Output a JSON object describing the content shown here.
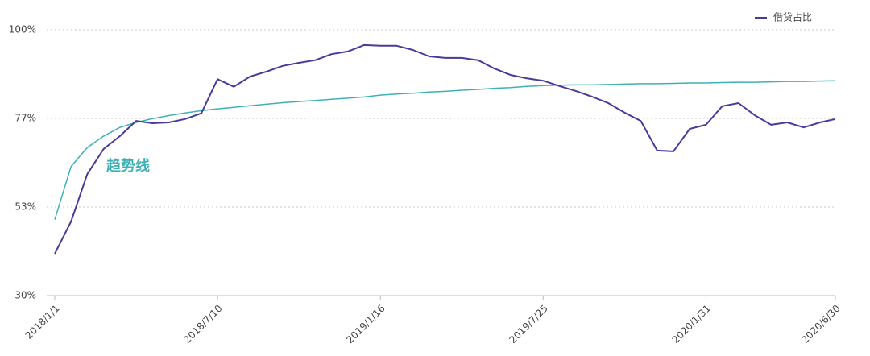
{
  "chart_data": {
    "type": "line",
    "x": [
      "2018/1/1",
      "2018/1/20",
      "2018/2/8",
      "2018/2/27",
      "2018/3/18",
      "2018/4/6",
      "2018/4/25",
      "2018/5/14",
      "2018/6/2",
      "2018/6/21",
      "2018/7/10",
      "2018/7/29",
      "2018/8/17",
      "2018/9/5",
      "2018/9/24",
      "2018/10/13",
      "2018/11/1",
      "2018/11/20",
      "2018/12/9",
      "2018/12/28",
      "2019/1/16",
      "2019/2/4",
      "2019/2/23",
      "2019/3/14",
      "2019/4/2",
      "2019/4/21",
      "2019/5/10",
      "2019/5/29",
      "2019/6/17",
      "2019/7/6",
      "2019/7/25",
      "2019/8/13",
      "2019/9/1",
      "2019/9/20",
      "2019/10/9",
      "2019/10/28",
      "2019/11/16",
      "2019/12/5",
      "2019/12/24",
      "2020/1/12",
      "2020/1/31",
      "2020/2/19",
      "2020/3/9",
      "2020/3/28",
      "2020/4/16",
      "2020/5/5",
      "2020/5/24",
      "2020/6/12",
      "2020/6/30"
    ],
    "series": [
      {
        "name": "借贷占比",
        "color": "#4b3a9a",
        "values": [
          41,
          49.5,
          62,
          68.6,
          72,
          76,
          75.4,
          75.6,
          76.5,
          78,
          87,
          85,
          87.7,
          89,
          90.5,
          91.3,
          92,
          93.6,
          94.3,
          96,
          95.8,
          95.8,
          94.7,
          93,
          92.6,
          92.6,
          92,
          89.8,
          88.1,
          87.2,
          86.6,
          85.2,
          83.9,
          82.4,
          80.7,
          78.2,
          76,
          68.2,
          68,
          73.9,
          75,
          79.9,
          80.7,
          77.5,
          75,
          75.6,
          74.3,
          75.6,
          76.5
        ]
      },
      {
        "name": "趋势线",
        "color": "#3fb1b5",
        "values": [
          50,
          64,
          69,
          72,
          74.3,
          75.6,
          76.6,
          77.4,
          78.1,
          78.7,
          79.2,
          79.6,
          80,
          80.4,
          80.8,
          81.1,
          81.4,
          81.7,
          82,
          82.3,
          82.8,
          83.1,
          83.3,
          83.6,
          83.8,
          84.1,
          84.3,
          84.6,
          84.8,
          85.1,
          85.3,
          85.4,
          85.5,
          85.5,
          85.6,
          85.7,
          85.8,
          85.8,
          85.9,
          86,
          86,
          86.1,
          86.2,
          86.2,
          86.3,
          86.4,
          86.4,
          86.5,
          86.6
        ]
      }
    ],
    "ylim": [
      30,
      100
    ],
    "yticks": [
      {
        "value": 30,
        "label": "30%"
      },
      {
        "value": 53.33,
        "label": "53%"
      },
      {
        "value": 76.67,
        "label": "77%"
      },
      {
        "value": 100,
        "label": "100%"
      }
    ],
    "xticks": [
      "2018/1/1",
      "2018/7/10",
      "2019/1/16",
      "2019/7/25",
      "2020/1/31",
      "2020/6/30"
    ],
    "grid": true
  }
}
